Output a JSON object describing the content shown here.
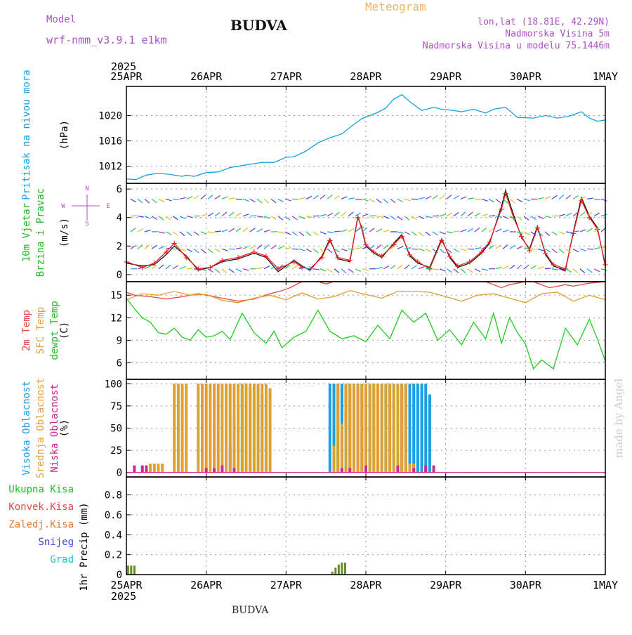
{
  "header": {
    "model_label": "Model",
    "model_name": "wrf-nmm_v3.9.1 e1km",
    "title": "BUDVA",
    "meteogram": "Meteogram",
    "coords": "lon,lat (18.81E, 42.29N)",
    "elevation": "Nadmorska Visina 5m",
    "model_elevation": "Nadmorska Visina u modelu 75.1446m",
    "footer_name": "BUDVA",
    "credit": "made by Angel",
    "colors": {
      "model": "#b050c8",
      "meteogram": "#e8b860",
      "coords": "#b050c8",
      "title": "#111111"
    }
  },
  "time_axis": {
    "year": "2025",
    "labels": [
      "25APR",
      "26APR",
      "27APR",
      "28APR",
      "29APR",
      "30APR",
      "1MAY"
    ]
  },
  "chart_data": [
    {
      "type": "line",
      "panel": "pressure",
      "ylabel_parts": [
        {
          "text": "Pritisak na nivou mora",
          "color": "#1aa0e0"
        },
        {
          "text": "(hPa)",
          "color": "#000000"
        }
      ],
      "yticks": [
        1012,
        1016,
        1020
      ],
      "ylim": [
        1009.3,
        1024.6
      ],
      "grid": true,
      "series": [
        {
          "color": "#1aa0e0",
          "x": [
            0,
            0.12,
            0.25,
            0.4,
            0.55,
            0.7,
            0.75,
            0.85,
            1.0,
            1.15,
            1.3,
            1.45,
            1.55,
            1.7,
            1.85,
            2.0,
            2.1,
            2.25,
            2.4,
            2.55,
            2.7,
            2.85,
            2.95,
            3.05,
            3.15,
            3.25,
            3.35,
            3.45,
            3.55,
            3.7,
            3.85,
            3.95,
            4.1,
            4.2,
            4.35,
            4.5,
            4.6,
            4.75,
            4.9,
            5.1,
            5.25,
            5.4,
            5.55,
            5.7,
            5.8,
            5.9,
            6.0
          ],
          "y": [
            1010,
            1009.9,
            1010.6,
            1010.9,
            1010.7,
            1010.4,
            1010.6,
            1010.4,
            1011,
            1011.1,
            1011.8,
            1012.1,
            1012.3,
            1012.6,
            1012.6,
            1013.4,
            1013.5,
            1014.4,
            1015.7,
            1016.5,
            1017.1,
            1018.6,
            1019.5,
            1020,
            1020.5,
            1021.2,
            1022.6,
            1023.3,
            1022.2,
            1020.8,
            1021.3,
            1021,
            1020.8,
            1020.6,
            1021,
            1020.4,
            1021,
            1021.3,
            1019.7,
            1019.6,
            1020,
            1019.6,
            1019.9,
            1020.6,
            1019.6,
            1019.1,
            1019.3
          ]
        }
      ]
    },
    {
      "type": "line",
      "panel": "wind",
      "ylabel_parts": [
        {
          "text": "10m Vjetar",
          "color": "#22bb22"
        },
        {
          "text": "Brzina i Pravac",
          "color": "#22bb22"
        },
        {
          "text": "(m/s)",
          "color": "#000000"
        }
      ],
      "compass": {
        "n": "N",
        "w": "W",
        "e": "E",
        "s": "S"
      },
      "yticks": [
        0,
        2,
        4,
        6
      ],
      "ylim": [
        -0.5,
        6.4
      ],
      "grid": true,
      "series": [
        {
          "name": "speed",
          "color": "#111111",
          "x": [
            0,
            0.2,
            0.35,
            0.5,
            0.6,
            0.75,
            0.9,
            1.05,
            1.2,
            1.4,
            1.6,
            1.75,
            1.9,
            2.1,
            2.2,
            2.3,
            2.45,
            2.55,
            2.65,
            2.8,
            2.9,
            2.95,
            3.0,
            3.1,
            3.2,
            3.35,
            3.45,
            3.55,
            3.65,
            3.8,
            3.95,
            4.05,
            4.15,
            4.3,
            4.45,
            4.55,
            4.7,
            4.75,
            4.85,
            4.95,
            5.05,
            5.15,
            5.25,
            5.35,
            5.5,
            5.6,
            5.7,
            5.8,
            5.9,
            6.0
          ],
          "y": [
            0.8,
            0.6,
            0.7,
            1.4,
            2.0,
            1.3,
            0.3,
            0.5,
            0.9,
            1.1,
            1.5,
            1.2,
            0.2,
            1.0,
            0.6,
            0.3,
            1.3,
            2.5,
            1.1,
            0.9,
            4.1,
            3.2,
            2.0,
            1.5,
            1.2,
            2.2,
            2.8,
            1.3,
            0.8,
            0.5,
            2.5,
            1.2,
            0.5,
            0.8,
            1.5,
            2.2,
            4.8,
            5.9,
            4.2,
            2.6,
            1.8,
            3.4,
            1.4,
            0.6,
            0.3,
            3.0,
            5.4,
            4.1,
            3.3,
            0.6
          ]
        },
        {
          "name": "gust",
          "color": "#ee2222",
          "x": [
            0,
            0.2,
            0.35,
            0.5,
            0.6,
            0.75,
            0.9,
            1.05,
            1.2,
            1.4,
            1.6,
            1.75,
            1.9,
            2.1,
            2.2,
            2.3,
            2.45,
            2.55,
            2.65,
            2.8,
            2.9,
            2.95,
            3.0,
            3.1,
            3.2,
            3.35,
            3.45,
            3.55,
            3.65,
            3.8,
            3.95,
            4.05,
            4.15,
            4.3,
            4.45,
            4.55,
            4.7,
            4.75,
            4.85,
            4.95,
            5.05,
            5.15,
            5.25,
            5.35,
            5.5,
            5.6,
            5.7,
            5.8,
            5.9,
            6.0
          ],
          "y": [
            0.9,
            0.5,
            0.8,
            1.6,
            2.2,
            1.2,
            0.4,
            0.5,
            1.0,
            1.2,
            1.6,
            1.3,
            0.4,
            0.9,
            0.5,
            0.4,
            1.2,
            2.4,
            1.2,
            1.0,
            4.0,
            3.3,
            2.1,
            1.6,
            1.3,
            2.1,
            2.7,
            1.4,
            0.9,
            0.4,
            2.4,
            1.3,
            0.6,
            0.9,
            1.6,
            2.3,
            4.6,
            5.7,
            4.0,
            2.7,
            1.7,
            3.3,
            1.5,
            0.7,
            0.4,
            2.9,
            5.2,
            4.0,
            3.2,
            0.7
          ]
        }
      ]
    },
    {
      "type": "line",
      "panel": "temperature",
      "ylabel_parts": [
        {
          "text": "2m Temp",
          "color": "#ee4444"
        },
        {
          "text": "SFC Temp",
          "color": "#e8a040"
        },
        {
          "text": "dewpt Temp",
          "color": "#22bb22"
        },
        {
          "text": "(C)",
          "color": "#000000"
        }
      ],
      "yticks": [
        6,
        9,
        12,
        15
      ],
      "ylim": [
        3.8,
        16.8
      ],
      "grid": true,
      "series": [
        {
          "name": "2m Temp",
          "color": "#ee4444",
          "x": [
            0,
            0.1,
            0.3,
            0.5,
            0.7,
            0.9,
            1.0,
            1.2,
            1.4,
            1.6,
            1.8,
            1.95,
            2.05,
            2.2,
            2.4,
            2.5,
            2.6,
            2.7,
            2.8,
            3.0,
            3.2,
            3.4,
            3.6,
            3.8,
            3.95,
            4.1,
            4.3,
            4.5,
            4.6,
            4.7,
            4.8,
            5.0,
            5.1,
            5.3,
            5.5,
            5.6,
            5.8,
            6.0
          ],
          "y": [
            15.4,
            15.0,
            14.8,
            14.5,
            14.8,
            15.2,
            15.0,
            14.6,
            14.2,
            14.5,
            15.2,
            15.6,
            16.0,
            17.0,
            17.2,
            16.5,
            16.8,
            17.2,
            17.4,
            17.4,
            17.2,
            17.4,
            17.2,
            16.9,
            17.0,
            17.2,
            17.1,
            17.0,
            16.4,
            16.0,
            16.4,
            17.0,
            16.8,
            16.0,
            16.4,
            16.2,
            16.6,
            16.8
          ]
        },
        {
          "name": "SFC Temp",
          "color": "#e0a030",
          "x": [
            0,
            0.2,
            0.4,
            0.6,
            0.8,
            1.0,
            1.2,
            1.4,
            1.6,
            1.8,
            2.0,
            2.2,
            2.4,
            2.6,
            2.8,
            3.0,
            3.2,
            3.4,
            3.6,
            3.8,
            4.0,
            4.2,
            4.4,
            4.6,
            4.8,
            5.0,
            5.2,
            5.4,
            5.6,
            5.8,
            6.0
          ],
          "y": [
            14.4,
            15.2,
            15.0,
            15.5,
            15.0,
            15.1,
            14.3,
            14.0,
            14.6,
            15.0,
            14.4,
            15.3,
            14.5,
            14.8,
            15.6,
            15.1,
            14.6,
            15.5,
            15.5,
            15.4,
            14.8,
            14.2,
            15.0,
            15.2,
            14.6,
            14.0,
            15.2,
            15.4,
            14.2,
            15.0,
            14.4
          ]
        },
        {
          "name": "dewpt Temp",
          "color": "#22cc22",
          "x": [
            0,
            0.1,
            0.2,
            0.3,
            0.4,
            0.5,
            0.6,
            0.7,
            0.8,
            0.9,
            1.0,
            1.1,
            1.2,
            1.3,
            1.45,
            1.6,
            1.75,
            1.85,
            1.95,
            2.1,
            2.25,
            2.4,
            2.55,
            2.7,
            2.85,
            3.0,
            3.15,
            3.3,
            3.45,
            3.6,
            3.75,
            3.9,
            4.05,
            4.2,
            4.35,
            4.5,
            4.6,
            4.7,
            4.8,
            4.9,
            5.0,
            5.1,
            5.2,
            5.35,
            5.5,
            5.65,
            5.8,
            5.9,
            6.0
          ],
          "y": [
            14.6,
            13.2,
            12.0,
            11.4,
            10.0,
            9.8,
            10.6,
            9.4,
            9.0,
            10.4,
            9.4,
            9.6,
            10.2,
            9.1,
            12.6,
            10.0,
            8.6,
            10.2,
            8.0,
            9.4,
            10.2,
            13.0,
            10.2,
            9.2,
            9.6,
            8.8,
            11.0,
            9.2,
            13.0,
            11.4,
            12.6,
            9.0,
            10.4,
            8.4,
            11.4,
            9.2,
            12.6,
            8.6,
            12.0,
            10.0,
            8.5,
            5.2,
            6.4,
            5.2,
            10.6,
            8.4,
            11.8,
            9.2,
            6.2
          ]
        }
      ]
    },
    {
      "type": "bar",
      "panel": "cloud",
      "ylabel_parts": [
        {
          "text": "Visoka Oblacnost",
          "color": "#1aa0e0"
        },
        {
          "text": "Srednja Oblacnost",
          "color": "#e8a040"
        },
        {
          "text": "Niska Oblacnost",
          "color": "#d02890"
        },
        {
          "text": "(%)",
          "color": "#000000"
        }
      ],
      "yticks": [
        0,
        25,
        50,
        75,
        100
      ],
      "ylim": [
        -5,
        105
      ],
      "grid": true,
      "series": [
        {
          "name": "Visoka Oblacnost",
          "color": "#1aa0e0",
          "x": [
            1.2,
            1.25,
            1.3,
            1.35,
            1.4,
            1.45,
            1.5,
            1.55,
            1.6,
            1.65,
            1.7,
            1.75,
            1.8,
            1.85,
            1.9,
            1.95,
            2.0,
            2.05,
            2.1,
            2.15,
            2.2,
            2.25,
            2.3,
            2.35,
            2.4,
            2.45,
            2.5,
            2.55,
            2.6,
            2.65,
            2.7,
            2.75,
            2.8,
            2.85,
            2.9,
            2.95,
            3.0,
            3.05,
            3.1,
            3.15,
            3.2,
            3.25,
            3.3,
            3.35,
            3.4,
            3.45,
            3.5,
            3.55,
            3.6,
            3.65,
            3.7,
            3.75,
            3.8
          ],
          "y": [
            0,
            0,
            30,
            60,
            75,
            100,
            100,
            95,
            90,
            95,
            88,
            82,
            0,
            0,
            0,
            0,
            0,
            0,
            0,
            0,
            0,
            0,
            0,
            0,
            0,
            0,
            0,
            100,
            100,
            100,
            100,
            100,
            100,
            100,
            100,
            100,
            100,
            100,
            100,
            100,
            100,
            100,
            100,
            100,
            100,
            100,
            100,
            100,
            100,
            100,
            100,
            100,
            88
          ]
        },
        {
          "name": "Srednja Oblacnost",
          "color": "#e0a030",
          "x": [
            0.3,
            0.35,
            0.4,
            0.45,
            0.6,
            0.65,
            0.7,
            0.75,
            0.9,
            0.95,
            1.0,
            1.05,
            1.1,
            1.15,
            1.2,
            1.25,
            1.3,
            1.35,
            1.4,
            1.45,
            1.5,
            1.55,
            1.6,
            1.65,
            1.7,
            1.75,
            1.8,
            2.6,
            2.65,
            2.7,
            2.75,
            2.8,
            2.85,
            2.9,
            2.95,
            3.0,
            3.05,
            3.1,
            3.15,
            3.2,
            3.25,
            3.3,
            3.35,
            3.4,
            3.45,
            3.5,
            3.55,
            3.6
          ],
          "y": [
            10,
            10,
            10,
            10,
            100,
            100,
            100,
            100,
            100,
            100,
            100,
            100,
            100,
            100,
            100,
            100,
            100,
            100,
            100,
            100,
            100,
            100,
            100,
            100,
            100,
            100,
            95,
            30,
            100,
            55,
            100,
            100,
            100,
            100,
            100,
            100,
            100,
            100,
            100,
            100,
            100,
            100,
            100,
            100,
            100,
            100,
            10,
            10
          ]
        },
        {
          "name": "Niska Oblacnost",
          "color": "#d02890",
          "x": [
            0.1,
            0.2,
            0.25,
            1.0,
            1.1,
            1.2,
            1.35,
            2.7,
            2.8,
            3.0,
            3.4,
            3.6,
            3.75,
            3.85
          ],
          "y": [
            8,
            8,
            8,
            5,
            5,
            8,
            5,
            5,
            5,
            8,
            8,
            5,
            8,
            8
          ]
        }
      ]
    },
    {
      "type": "bar",
      "panel": "precipitation",
      "ylabel_parts": [
        {
          "text": "Ukupna Kisa",
          "color": "#22bb22"
        },
        {
          "text": "Konvek.Kisa",
          "color": "#ee4444"
        },
        {
          "text": "Zaledj.Kisa",
          "color": "#e87830"
        },
        {
          "text": "Snijeg",
          "color": "#4040e0"
        },
        {
          "text": "Grad",
          "color": "#22c0c0"
        },
        {
          "text": "1hr Precip (mm)",
          "color": "#000000"
        }
      ],
      "yticks": [
        0,
        0.2,
        0.4,
        0.6,
        0.8
      ],
      "ylim": [
        0,
        0.98
      ],
      "grid": true,
      "series": [
        {
          "name": "Ukupna Kisa",
          "color": "#6a8a2a",
          "x": [
            0.02,
            0.06,
            0.1,
            2.58,
            2.62,
            2.66,
            2.7,
            2.74
          ],
          "y": [
            0.09,
            0.09,
            0.09,
            0.03,
            0.07,
            0.1,
            0.12,
            0.12
          ]
        }
      ]
    }
  ]
}
